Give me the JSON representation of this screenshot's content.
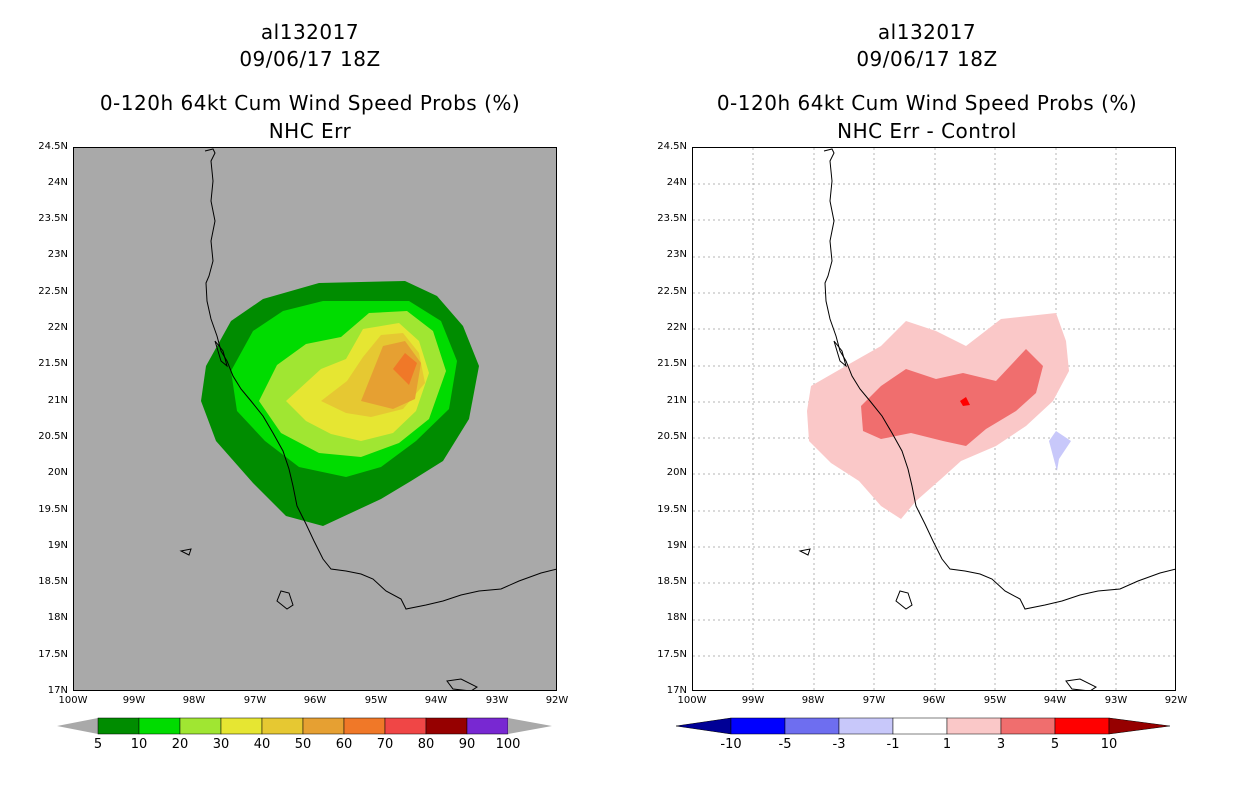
{
  "left": {
    "storm_id": "al132017",
    "date": "09/06/17 18Z",
    "product": "0-120h 64kt Cum Wind Speed Probs (%)",
    "subtitle": "NHC Err",
    "background_color": "#a9a9a9",
    "colorbar": {
      "colors": [
        "#008c00",
        "#00dc00",
        "#a0e632",
        "#e6e632",
        "#e6c832",
        "#e6a032",
        "#f07828",
        "#f04646",
        "#960000",
        "#7828d2"
      ],
      "labels": [
        "5",
        "10",
        "20",
        "30",
        "40",
        "50",
        "60",
        "70",
        "80",
        "90",
        "100"
      ]
    }
  },
  "right": {
    "storm_id": "al132017",
    "date": "09/06/17 18Z",
    "product": "0-120h 64kt Cum Wind Speed Probs (%)",
    "subtitle": "NHC Err - Control",
    "background_color": "#ffffff",
    "colorbar": {
      "colors": [
        "#000096",
        "#0000ff",
        "#6e6ef0",
        "#c8c8fa",
        "#ffffff",
        "#fac8c8",
        "#f06e6e",
        "#ff0000",
        "#960000"
      ],
      "labels": [
        "-10",
        "-5",
        "-3",
        "-1",
        "1",
        "3",
        "5",
        "10"
      ]
    }
  },
  "axes": {
    "lat_labels": [
      "24.5N",
      "24N",
      "23.5N",
      "23N",
      "22.5N",
      "22N",
      "21.5N",
      "21N",
      "20.5N",
      "20N",
      "19.5N",
      "19N",
      "18.5N",
      "18N",
      "17.5N",
      "17N"
    ],
    "lon_labels": [
      "100W",
      "99W",
      "98W",
      "97W",
      "96W",
      "95W",
      "94W",
      "93W",
      "92W"
    ],
    "lat_range": [
      17,
      24.5
    ],
    "lon_range": [
      -100,
      -92
    ]
  }
}
